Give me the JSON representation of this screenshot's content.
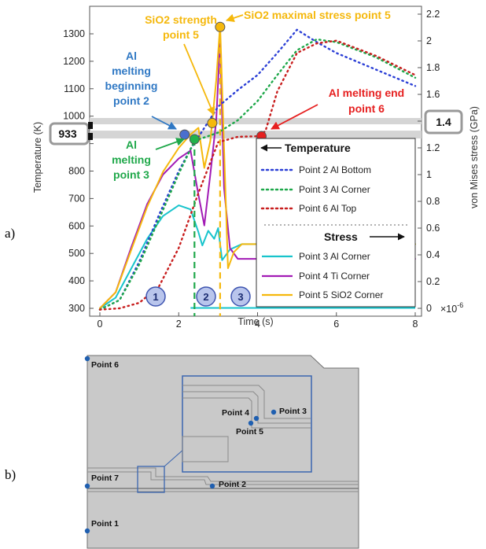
{
  "panel_labels": [
    "a)",
    "b)"
  ],
  "chart_data": {
    "type": "line",
    "xlabel": "Time (s)",
    "x_multiplier": "×10",
    "x_multiplier_exp": "-6",
    "ylabel_left": "Temperature (K)",
    "ylabel_right": "von Mises stress (GPa)",
    "xlim": [
      -0.4,
      8.2
    ],
    "ylim_left": [
      270,
      1370
    ],
    "ylim_right": [
      -0.069,
      2.226
    ],
    "x_ticks": [
      0,
      2,
      4,
      6,
      8
    ],
    "y_ticks_left": [
      300,
      400,
      500,
      600,
      700,
      800,
      900,
      1000,
      1100,
      1200,
      1300
    ],
    "y_ticks_right": [
      0,
      0.2,
      0.4,
      0.6,
      0.8,
      1,
      1.2,
      1.4,
      1.6,
      1.8,
      2,
      2.2
    ],
    "callout_left": "933",
    "callout_right": "1.4",
    "regions": [
      "1",
      "2",
      "3"
    ],
    "legend": {
      "temperature_heading": "Temperature",
      "stress_heading": "Stress",
      "temperature_entries": [
        "Point 2 Al Bottom",
        "Point 3 Al Corner",
        "Point 6 Al Top"
      ],
      "stress_entries": [
        "Point 3 Al Corner",
        "Point 4 Ti Corner",
        "Point 5 SiO2 Corner"
      ]
    },
    "series": [
      {
        "name": "Point 2 Al Bottom",
        "quantity": "temperature",
        "color": "#2b3fd6",
        "style": "dotted",
        "x": [
          0,
          0.5,
          1.0,
          1.5,
          2.0,
          2.3,
          3.0,
          3.5,
          4.0,
          4.5,
          5.0,
          5.5,
          6.0,
          7.0,
          8.0
        ],
        "y": [
          295,
          330,
          470,
          640,
          800,
          880,
          1035,
          1095,
          1150,
          1230,
          1315,
          1270,
          1230,
          1170,
          1110
        ]
      },
      {
        "name": "Point 3 Al Corner",
        "quantity": "temperature",
        "color": "#1ea84a",
        "style": "dotted",
        "x": [
          0,
          0.5,
          1.0,
          1.5,
          2.0,
          2.4,
          3.0,
          3.5,
          4.0,
          4.5,
          5.0,
          5.5,
          6.0,
          7.0,
          8.0
        ],
        "y": [
          295,
          330,
          460,
          625,
          790,
          910,
          940,
          985,
          1055,
          1150,
          1240,
          1280,
          1270,
          1215,
          1140
        ]
      },
      {
        "name": "Point 6 Al Top",
        "quantity": "temperature",
        "color": "#c81e1e",
        "style": "dotted",
        "x": [
          0,
          0.5,
          1.0,
          1.5,
          2.0,
          2.5,
          3.0,
          3.5,
          4.0,
          4.2,
          4.5,
          5.0,
          5.5,
          6.0,
          7.0,
          8.0
        ],
        "y": [
          295,
          300,
          320,
          380,
          520,
          720,
          905,
          925,
          927,
          945,
          1090,
          1230,
          1265,
          1275,
          1220,
          1150
        ]
      },
      {
        "name": "Point 3 Al Corner",
        "quantity": "stress",
        "color": "#18c4cc",
        "style": "solid",
        "x": [
          0,
          0.4,
          0.8,
          1.2,
          1.6,
          2.0,
          2.3,
          2.5,
          2.6,
          2.75,
          2.9,
          3.0,
          3.1,
          3.3,
          3.6,
          4.0,
          6.0,
          8.0
        ],
        "y": [
          0,
          0.08,
          0.3,
          0.52,
          0.69,
          0.77,
          0.74,
          0.57,
          0.47,
          0.58,
          0.52,
          0.6,
          0.36,
          0.44,
          0.48,
          0.48,
          0.48,
          0.48
        ]
      },
      {
        "name": "Point 4 Ti Corner",
        "quantity": "stress",
        "color": "#a21bb5",
        "style": "solid",
        "x": [
          0,
          0.4,
          0.8,
          1.2,
          1.6,
          2.0,
          2.3,
          2.5,
          2.65,
          2.8,
          2.95,
          3.05,
          3.15,
          3.3,
          3.5,
          4.0,
          6.0,
          8.0
        ],
        "y": [
          0,
          0.12,
          0.46,
          0.78,
          1.0,
          1.12,
          1.18,
          0.85,
          0.62,
          1.0,
          1.4,
          2.0,
          0.9,
          0.45,
          0.37,
          0.37,
          0.37,
          0.37
        ]
      },
      {
        "name": "Point 5 SiO2 Corner",
        "quantity": "stress",
        "color": "#f5b80c",
        "style": "solid",
        "x": [
          0,
          0.4,
          0.8,
          1.2,
          1.6,
          2.0,
          2.3,
          2.5,
          2.65,
          2.8,
          2.95,
          3.05,
          3.15,
          3.25,
          3.4,
          3.6,
          4.0,
          6.0,
          8.0
        ],
        "y": [
          0,
          0.12,
          0.44,
          0.76,
          1.02,
          1.2,
          1.3,
          1.35,
          1.05,
          1.25,
          1.7,
          2.12,
          1.2,
          0.3,
          0.42,
          0.48,
          0.48,
          0.48,
          0.48
        ]
      }
    ],
    "markers": [
      {
        "x": 2.15,
        "y": 933,
        "color": "#4a6fcf"
      },
      {
        "x": 2.4,
        "y": 916,
        "color": "#22b34b"
      },
      {
        "x": 2.85,
        "y": 975,
        "color": "#f5b80c"
      },
      {
        "x": 3.05,
        "y": 1325,
        "color": "#f5b80c"
      },
      {
        "x": 4.1,
        "y": 927,
        "color": "#e62020"
      }
    ],
    "annotations": [
      {
        "lines": [
          "SiO2 strength",
          "point 5"
        ],
        "color": "#f5b80c"
      },
      {
        "lines": [
          "SiO2 maximal stress point 5"
        ],
        "color": "#f5b80c"
      },
      {
        "lines": [
          "Al",
          "melting",
          "beginning",
          "point 2"
        ],
        "color": "#2f78c4"
      },
      {
        "lines": [
          "Al",
          "melting",
          "point 3"
        ],
        "color": "#1fa84a"
      },
      {
        "lines": [
          "Al melting end",
          "point 6"
        ],
        "color": "#e62020"
      }
    ]
  },
  "geometry_points": [
    "Point 6",
    "Point 4",
    "Point 3",
    "Point 5",
    "Point 7",
    "Point 2",
    "Point 1"
  ]
}
